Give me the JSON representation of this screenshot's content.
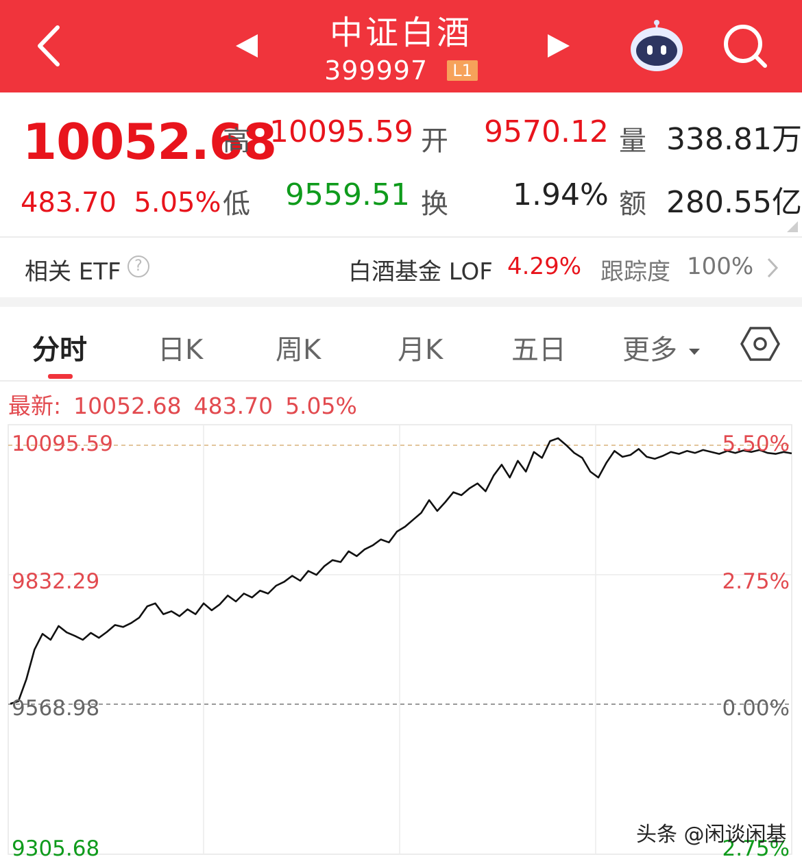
{
  "header": {
    "title": "中证白酒",
    "code": "399997",
    "level_badge": "L1",
    "colors": {
      "bar": "#f0343c"
    }
  },
  "quote": {
    "price": "10052.68",
    "change": "483.70",
    "change_pct": "5.05%",
    "high_label": "高",
    "high": "10095.59",
    "open_label": "开",
    "open": "9570.12",
    "volume_label": "量",
    "volume": "338.81万",
    "low_label": "低",
    "low": "9559.51",
    "turnover_label": "换",
    "turnover": "1.94%",
    "amount_label": "额",
    "amount": "280.55亿"
  },
  "etf": {
    "label": "相关 ETF",
    "help_glyph": "?",
    "fund_name": "白酒基金 LOF",
    "fund_change": "4.29%",
    "tracking_label": "跟踪度",
    "tracking_value": "100%"
  },
  "tabs": [
    {
      "label": "分时",
      "active": true
    },
    {
      "label": "日K"
    },
    {
      "label": "周K"
    },
    {
      "label": "月K"
    },
    {
      "label": "五日"
    },
    {
      "label": "更多"
    }
  ],
  "latest": {
    "label": "最新:",
    "price": "10052.68",
    "change": "483.70",
    "change_pct": "5.05%"
  },
  "chart_data": {
    "type": "line",
    "y_labels_left": [
      "10095.59",
      "9832.29",
      "9568.98",
      "9305.68"
    ],
    "y_labels_right": [
      "5.50%",
      "2.75%",
      "0.00%",
      "2.75%"
    ],
    "ylim": [
      9305.68,
      10095.59
    ],
    "prev_close": 9568.98,
    "high": 10095.59,
    "series": [
      {
        "values": [
          9570,
          9575,
          9620,
          9680,
          9712,
          9700,
          9728,
          9715,
          9708,
          9700,
          9714,
          9704,
          9716,
          9730,
          9726,
          9734,
          9745,
          9768,
          9774,
          9752,
          9758,
          9748,
          9762,
          9752,
          9774,
          9760,
          9772,
          9790,
          9778,
          9794,
          9786,
          9800,
          9794,
          9810,
          9818,
          9830,
          9820,
          9840,
          9832,
          9850,
          9862,
          9858,
          9880,
          9870,
          9884,
          9892,
          9904,
          9898,
          9920,
          9930,
          9944,
          9958,
          9984,
          9962,
          9980,
          10000,
          9994,
          10008,
          10018,
          10002,
          10034,
          10056,
          10030,
          10064,
          10042,
          10082,
          10070,
          10104,
          10110,
          10096,
          10080,
          10070,
          10042,
          10030,
          10060,
          10084,
          10072,
          10076,
          10088,
          10072,
          10068,
          10074,
          10082,
          10078,
          10084,
          10080,
          10086,
          10082,
          10078,
          10084,
          10080,
          10085,
          10082,
          10086,
          10080,
          10078,
          10082,
          10079
        ]
      }
    ],
    "grid": true
  }
}
